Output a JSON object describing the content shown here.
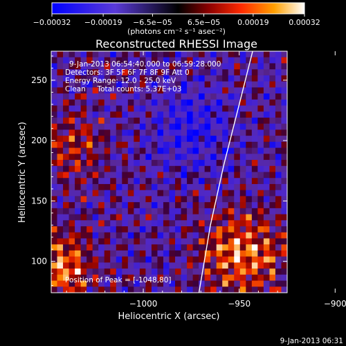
{
  "chart_data": {
    "type": "heatmap",
    "title": "Reconstructed RHESSI Image",
    "xlabel": "Heliocentric X (arcsec)",
    "ylabel": "Heliocentric Y (arcsec)",
    "xlim": [
      -1048,
      -925
    ],
    "ylim": [
      74,
      274
    ],
    "x_ticks": [
      -1000,
      -950,
      -900
    ],
    "x_tick_labels": [
      "−1000",
      "−950",
      "−900"
    ],
    "y_ticks": [
      100,
      150,
      200,
      250
    ],
    "y_tick_labels": [
      "100",
      "150",
      "200",
      "250"
    ],
    "colorbar": {
      "label": "(photons cm⁻² s⁻¹ asec⁻²)",
      "range": [
        -0.00032,
        0.00032
      ],
      "ticks": [
        -0.00032,
        -0.00019,
        -6.5e-05,
        6.5e-05,
        0.00019,
        0.00032
      ],
      "tick_labels": [
        "−0.00032",
        "−0.00019",
        "−6.5e−05",
        "6.5e−05",
        "0.00019",
        "0.00032"
      ]
    },
    "limb_line": [
      [
        -971,
        74
      ],
      [
        -965,
        130
      ],
      [
        -958,
        180
      ],
      [
        -950,
        230
      ],
      [
        -943,
        274
      ]
    ],
    "grid_resolution": [
      40,
      40
    ],
    "annotations": {
      "time_range": "9-Jan-2013 06:54:40.000 to 06:59:28.000",
      "detectors": "Detectors: 3F 5F 6F 7F 8F 9F Att 0",
      "energy": "Energy Range: 12.0 - 25.0 keV",
      "clean": "Clean     Total counts: 5.37E+03",
      "peak": "Position of Peak = [-1048,80]"
    },
    "timestamp": "9-Jan-2013 06:31",
    "grid": false
  }
}
